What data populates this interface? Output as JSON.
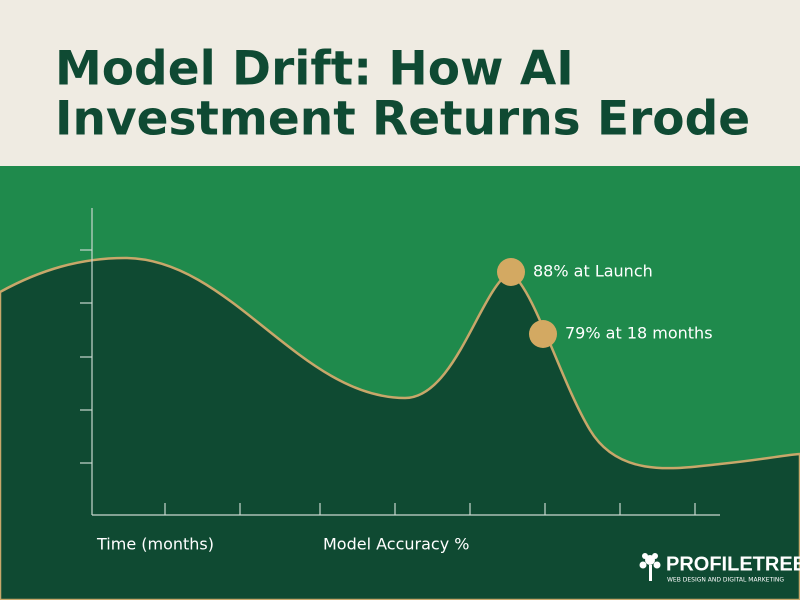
{
  "header": {
    "title_lines": [
      "Model Drift: How AI",
      "Investment Returns Erode"
    ]
  },
  "chart": {
    "annotations": [
      "88% at Launch",
      "79% at 18 months"
    ],
    "x_label": "Time (months)",
    "y_label": "Model Accuracy %"
  },
  "logo": {
    "name": "PROFILETREE",
    "tagline": "WEB DESIGN AND DIGITAL MARKETING"
  }
}
